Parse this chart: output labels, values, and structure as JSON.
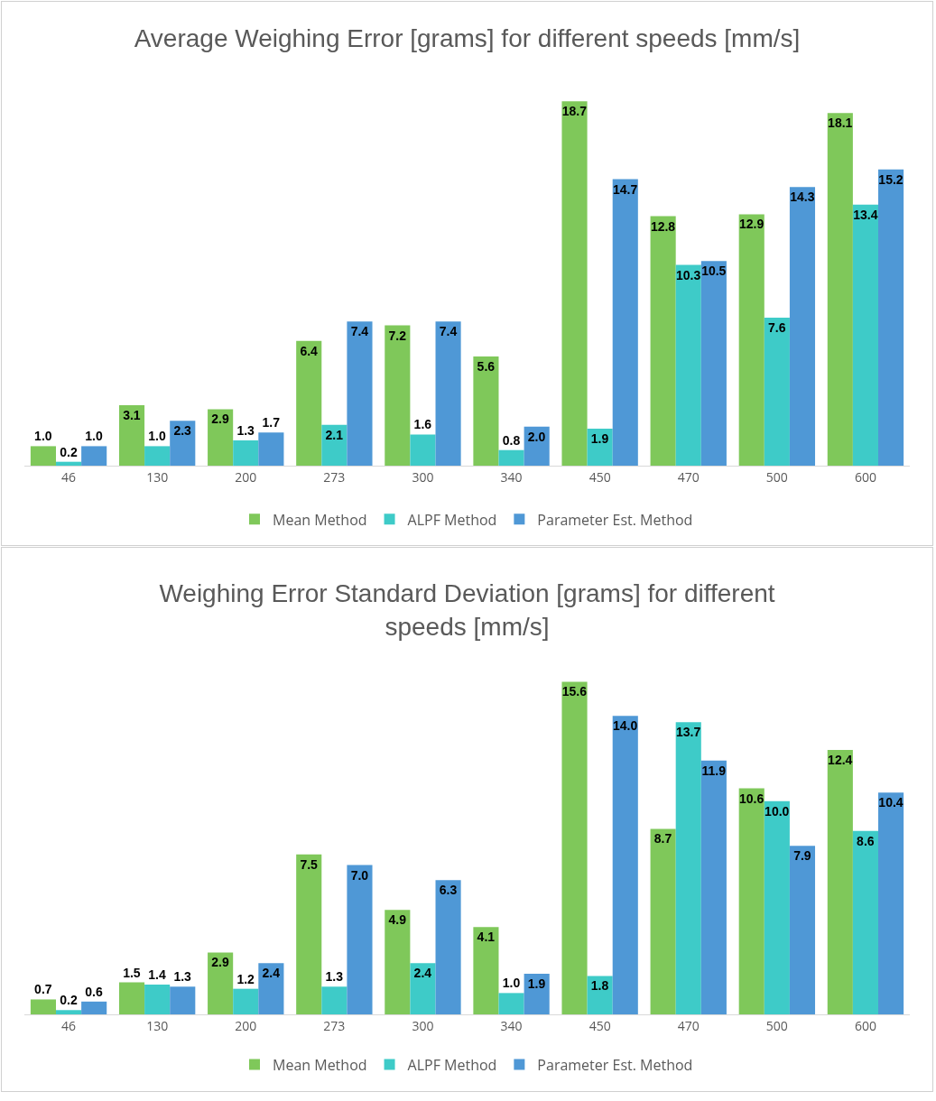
{
  "chart_data": [
    {
      "type": "bar",
      "title": "Average Weighing Error [grams] for different speeds [mm/s]",
      "categories": [
        "46",
        "130",
        "200",
        "273",
        "300",
        "340",
        "450",
        "470",
        "500",
        "600"
      ],
      "series": [
        {
          "name": "Mean Method",
          "color": "#7fc85a",
          "values": [
            1.0,
            3.1,
            2.9,
            6.4,
            7.2,
            5.6,
            18.7,
            12.8,
            12.9,
            18.1
          ],
          "value_labels": [
            "1.0",
            "3.1",
            "2.9",
            "6.4",
            "7.2",
            "5.6",
            "18.7",
            "12.8",
            "12.9",
            "18.1"
          ]
        },
        {
          "name": "ALPF Method",
          "color": "#3ecbc8",
          "values": [
            0.2,
            1.0,
            1.3,
            2.1,
            1.6,
            0.8,
            1.9,
            10.3,
            7.6,
            13.4
          ],
          "value_labels": [
            "0.2",
            "1.0",
            "1.3",
            "2.1",
            "1.6",
            "0.8",
            "1.9",
            "10.3",
            "7.6",
            "13.4"
          ]
        },
        {
          "name": "Parameter Est. Method",
          "color": "#4f98d6",
          "values": [
            1.0,
            2.3,
            1.7,
            7.4,
            7.4,
            2.0,
            14.7,
            10.5,
            14.3,
            15.2
          ],
          "value_labels": [
            "1.0",
            "2.3",
            "1.7",
            "7.4",
            "7.4",
            "2.0",
            "14.7",
            "10.5",
            "14.3",
            "15.2"
          ]
        }
      ],
      "legend": "bottom",
      "grid": false,
      "tick_labels": "x"
    },
    {
      "type": "bar",
      "title": "Weighing Error Standard Deviation [grams] for different speeds [mm/s]",
      "categories": [
        "46",
        "130",
        "200",
        "273",
        "300",
        "340",
        "450",
        "470",
        "500",
        "600"
      ],
      "series": [
        {
          "name": "Mean Method",
          "color": "#7fc85a",
          "values": [
            0.7,
            1.5,
            2.9,
            7.5,
            4.9,
            4.1,
            15.6,
            8.7,
            10.6,
            12.4
          ],
          "value_labels": [
            "0.7",
            "1.5",
            "2.9",
            "7.5",
            "4.9",
            "4.1",
            "15.6",
            "8.7",
            "10.6",
            "12.4"
          ]
        },
        {
          "name": "ALPF Method",
          "color": "#3ecbc8",
          "values": [
            0.2,
            1.4,
            1.2,
            1.3,
            2.4,
            1.0,
            1.8,
            13.7,
            10.0,
            8.6
          ],
          "value_labels": [
            "0.2",
            "1.4",
            "1.2",
            "1.3",
            "2.4",
            "1.0",
            "1.8",
            "13.7",
            "10.0",
            "8.6"
          ]
        },
        {
          "name": "Parameter Est. Method",
          "color": "#4f98d6",
          "values": [
            0.6,
            1.3,
            2.4,
            7.0,
            6.3,
            1.9,
            14.0,
            11.9,
            7.9,
            10.4
          ],
          "value_labels": [
            "0.6",
            "1.3",
            "2.4",
            "7.0",
            "6.3",
            "1.9",
            "14.0",
            "11.9",
            "7.9",
            "10.4"
          ]
        }
      ],
      "legend": "bottom",
      "grid": false,
      "tick_labels": "x"
    }
  ]
}
